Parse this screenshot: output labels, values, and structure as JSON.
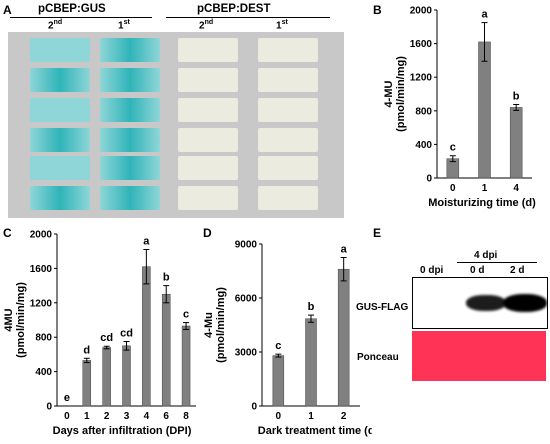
{
  "figure": {
    "panels": {
      "A": {
        "letter": "A",
        "groups": [
          {
            "label": "pCBEP:GUS",
            "lanes": [
              {
                "base": "2",
                "sup": "nd"
              },
              {
                "base": "1",
                "sup": "st"
              }
            ]
          },
          {
            "label": "pCBEP:DEST",
            "lanes": [
              {
                "base": "2",
                "sup": "nd"
              },
              {
                "base": "1",
                "sup": "st"
              }
            ]
          }
        ],
        "colors": {
          "blue_strong": "#2fb4b8",
          "blue_light": "#8fd6d8",
          "white_tissue": "#ecebe0",
          "background": "#c8c8c8"
        }
      },
      "B": {
        "letter": "B"
      },
      "C": {
        "letter": "C"
      },
      "D": {
        "letter": "D"
      },
      "E": {
        "letter": "E",
        "top_label": "4 dpi",
        "lanes": [
          "0 dpi",
          "0 d",
          "2 d"
        ],
        "rows": [
          "GUS-FLAG",
          "Ponceau"
        ],
        "band_intensity": [
          0,
          0.75,
          1.0
        ],
        "colors": {
          "ponceau": "#ff3355",
          "band": "#000000"
        }
      }
    }
  },
  "chart_data": [
    {
      "id": "B",
      "type": "bar",
      "categories": [
        "0",
        "1",
        "4"
      ],
      "values": [
        230,
        1620,
        840
      ],
      "errors": [
        35,
        230,
        35
      ],
      "letters": [
        "c",
        "a",
        "b"
      ],
      "xlabel": "Moisturizing time (d)",
      "ylabel": [
        "4-MU",
        "(pmol/min/mg)"
      ],
      "ylim": [
        0,
        2000
      ],
      "yticks": [
        "0",
        "400",
        "800",
        "1200",
        "1600",
        "2000"
      ],
      "bar_color": "#808080"
    },
    {
      "id": "C",
      "type": "bar",
      "categories": [
        "0",
        "1",
        "2",
        "3",
        "4",
        "6",
        "8"
      ],
      "values": [
        0,
        530,
        680,
        700,
        1620,
        1300,
        930
      ],
      "errors": [
        0,
        25,
        15,
        50,
        200,
        100,
        40
      ],
      "letters": [
        "e",
        "d",
        "cd",
        "cd",
        "a",
        "b",
        "c"
      ],
      "xlabel": "Days after infiltration (DPI)",
      "ylabel": [
        "4MU",
        "(pmol/min/mg)"
      ],
      "ylim": [
        0,
        2000
      ],
      "yticks": [
        "0",
        "400",
        "800",
        "1200",
        "1600",
        "2000"
      ],
      "bar_color": "#808080"
    },
    {
      "id": "D",
      "type": "bar",
      "categories": [
        "0",
        "1",
        "2"
      ],
      "values": [
        2800,
        4850,
        7600
      ],
      "errors": [
        80,
        200,
        650
      ],
      "letters": [
        "c",
        "b",
        "a"
      ],
      "xlabel": "Dark treatment time (d)",
      "ylabel": [
        "4-Mu",
        "(pmol/min/mg)"
      ],
      "ylim": [
        0,
        9000
      ],
      "yticks": [
        "0",
        "3000",
        "6000",
        "9000"
      ],
      "bar_color": "#808080"
    }
  ]
}
